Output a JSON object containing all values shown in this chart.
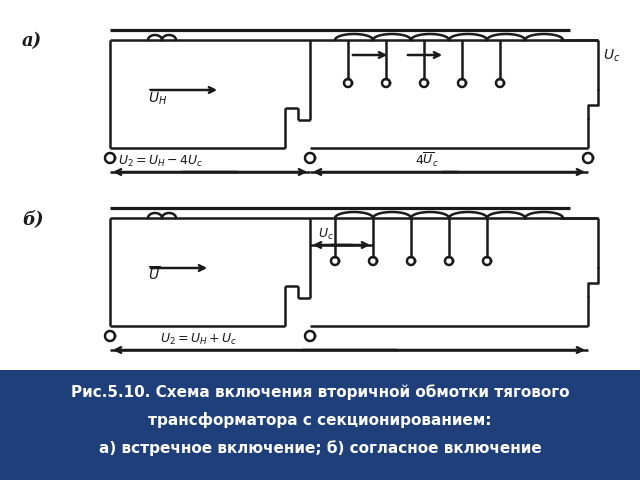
{
  "title_line1": "Рис.5.10. Схема включения вторичной обмотки тягового",
  "title_line2": "трансформатора с секционированием:",
  "title_line3": "а) встречное включение; б) согласное включение",
  "bg_color": "#ffffff",
  "caption_bg": "#1e3f7a",
  "caption_text_color": "#ffffff",
  "diagram_color": "#1a1a1a",
  "label_a": "а)",
  "label_b": "б)",
  "lw": 1.8
}
